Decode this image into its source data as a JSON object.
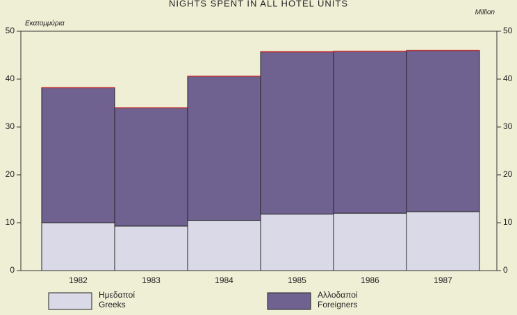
{
  "chart_data": {
    "type": "stacked_bar",
    "title": "NIGHTS SPENT IN ALL HOTEL UNITS",
    "y_label": "Εκατομμύρια",
    "y2_label": "Million",
    "categories": [
      "1982",
      "1983",
      "1984",
      "1985",
      "1986",
      "1987"
    ],
    "series": [
      {
        "name": "Ημεδαποί",
        "name_en": "Greeks",
        "color": "#d9d9e8",
        "values": [
          10.0,
          9.3,
          10.5,
          11.8,
          12.0,
          12.3
        ]
      },
      {
        "name": "Αλλοδαποί",
        "name_en": "Foreigners",
        "color": "#6f6190",
        "values": [
          28.2,
          24.7,
          30.1,
          33.9,
          33.8,
          33.7
        ]
      }
    ],
    "ylim": [
      0,
      50
    ],
    "yticks": [
      0,
      10,
      20,
      30,
      40,
      50
    ],
    "y2lim": [
      0,
      50
    ],
    "y2ticks": [
      0,
      10,
      20,
      30,
      40,
      50
    ],
    "grid": false
  }
}
